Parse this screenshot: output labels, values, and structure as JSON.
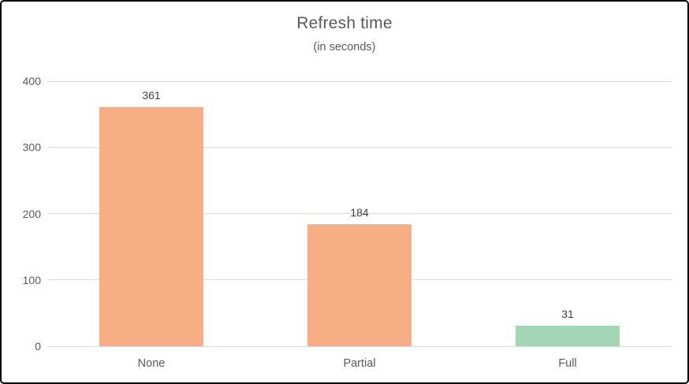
{
  "window": {
    "background_color": "#ffffff",
    "border_color": "#000000"
  },
  "chart_data": {
    "type": "bar",
    "title": "Refresh time",
    "subtitle": "(in seconds)",
    "categories": [
      "None",
      "Partial",
      "Full"
    ],
    "values": [
      361,
      184,
      31
    ],
    "data_labels": [
      "361",
      "184",
      "31"
    ],
    "bar_colors": [
      "#F8AE85",
      "#F8AE85",
      "#A2D6B4"
    ],
    "xlabel": "",
    "ylabel": "",
    "ylim": [
      0,
      400
    ],
    "yticks": [
      0,
      100,
      200,
      300,
      400
    ],
    "grid": true,
    "legend": false,
    "gridline_color": "#d9d9d9",
    "title_color": "#595959",
    "axis_label_color": "#595959",
    "data_label_color": "#404040"
  }
}
